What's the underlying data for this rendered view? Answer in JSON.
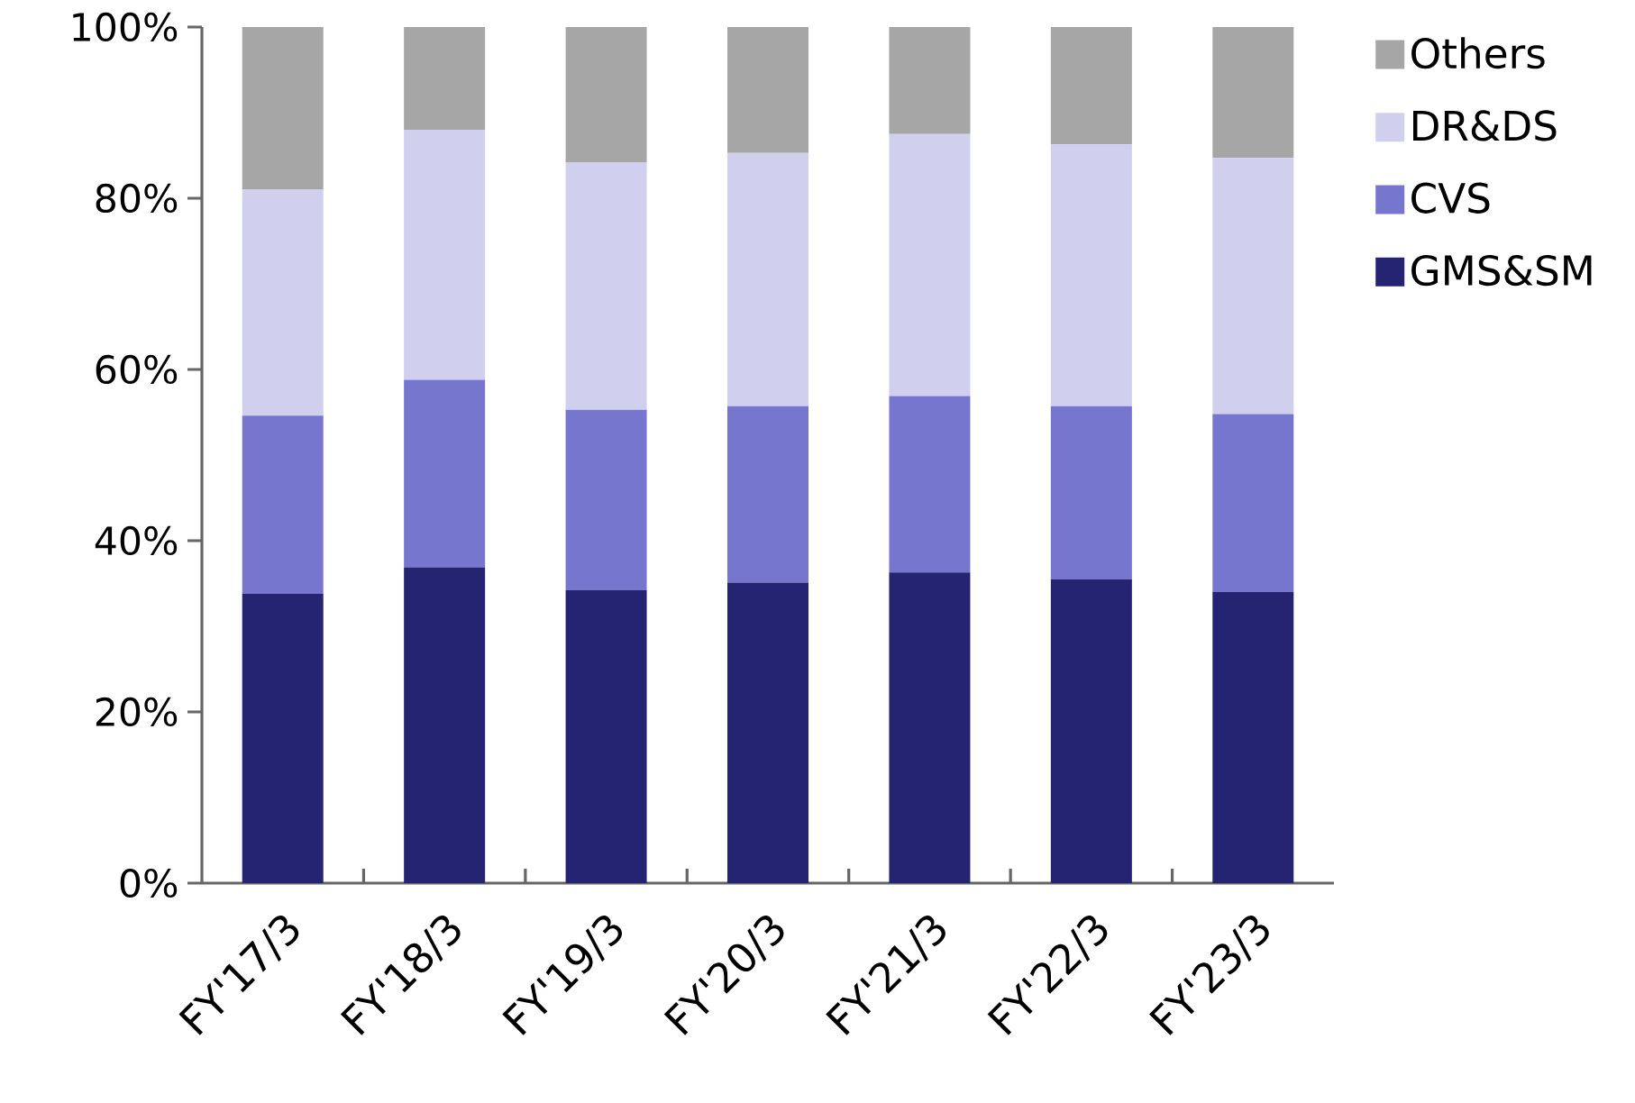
{
  "chart_data": {
    "type": "bar",
    "stacked": true,
    "categories": [
      "FY'17/3",
      "FY'18/3",
      "FY'19/3",
      "FY'20/3",
      "FY'21/3",
      "FY'22/3",
      "FY'23/3"
    ],
    "series": [
      {
        "name": "GMS&SM",
        "color": "#242473",
        "values": [
          33.8,
          36.9,
          34.2,
          35.1,
          36.3,
          35.5,
          34.0
        ]
      },
      {
        "name": "CVS",
        "color": "#7676cf",
        "values": [
          20.8,
          21.9,
          21.1,
          20.6,
          20.6,
          20.2,
          20.8
        ]
      },
      {
        "name": "DR&DS",
        "color": "#d0d0ee",
        "values": [
          26.4,
          29.2,
          28.9,
          29.6,
          30.6,
          30.6,
          29.9
        ]
      },
      {
        "name": "Others",
        "color": "#a6a6a6",
        "values": [
          19.0,
          12.0,
          15.8,
          14.7,
          12.5,
          13.7,
          15.3
        ]
      }
    ],
    "ylim": [
      0,
      100
    ],
    "yticks": [
      {
        "value": 0,
        "label": "0%"
      },
      {
        "value": 20,
        "label": "20%"
      },
      {
        "value": 40,
        "label": "40%"
      },
      {
        "value": 60,
        "label": "60%"
      },
      {
        "value": 80,
        "label": "80%"
      },
      {
        "value": 100,
        "label": "100%"
      }
    ],
    "legend": "right"
  }
}
